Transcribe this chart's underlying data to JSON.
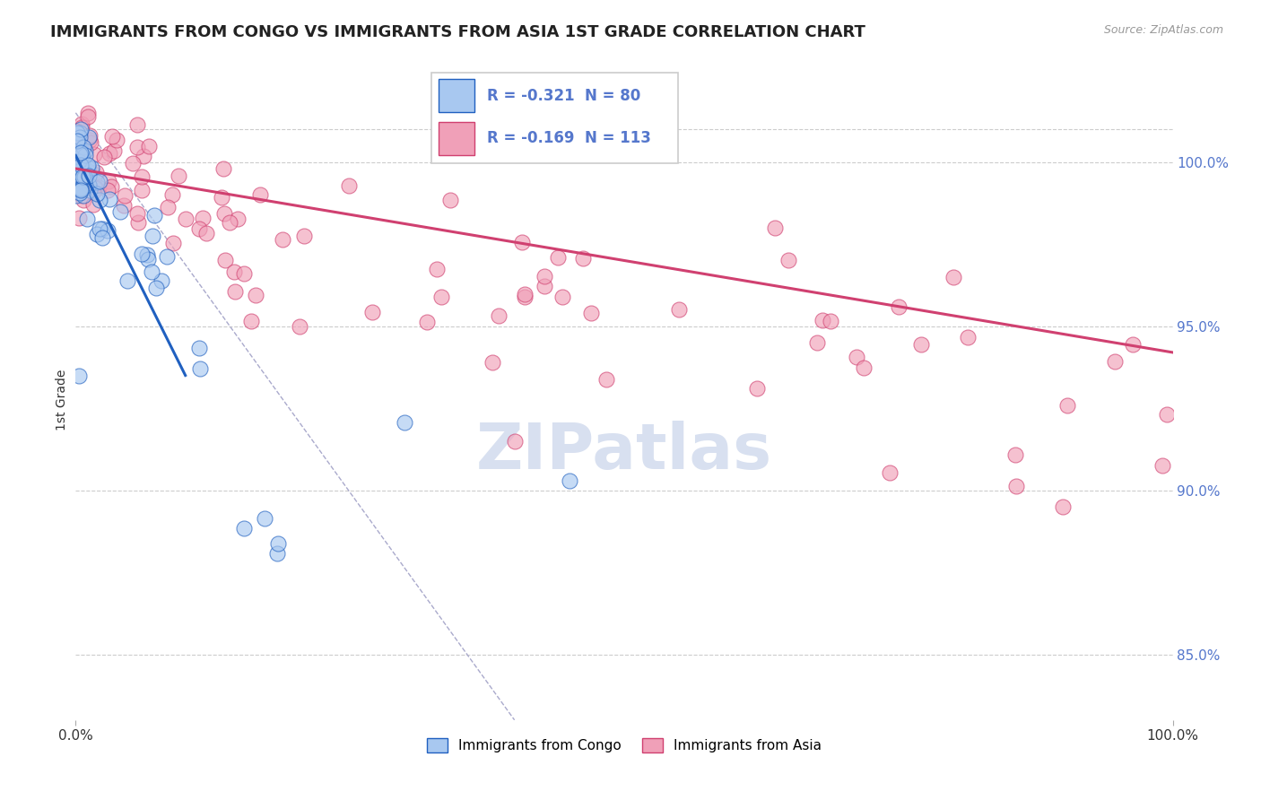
{
  "title": "IMMIGRANTS FROM CONGO VS IMMIGRANTS FROM ASIA 1ST GRADE CORRELATION CHART",
  "source": "Source: ZipAtlas.com",
  "ylabel": "1st Grade",
  "legend_congo": "Immigrants from Congo",
  "legend_asia": "Immigrants from Asia",
  "r_congo": -0.321,
  "n_congo": 80,
  "r_asia": -0.169,
  "n_asia": 113,
  "color_congo": "#a8c8f0",
  "color_asia": "#f0a0b8",
  "trendline_congo": "#2060c0",
  "trendline_asia": "#d04070",
  "ref_line_color": "#aaaacc",
  "grid_color": "#cccccc",
  "ytick_color": "#5577cc",
  "yticks": [
    85.0,
    90.0,
    95.0,
    100.0
  ],
  "ylim": [
    83.0,
    102.5
  ],
  "xlim": [
    0.0,
    100.0
  ],
  "watermark": "ZIPatlas",
  "watermark_color": "#d8e0f0",
  "congo_trend_x0": 0.0,
  "congo_trend_y0": 100.2,
  "congo_trend_x1": 10.0,
  "congo_trend_y1": 93.5,
  "asia_trend_x0": 0.0,
  "asia_trend_y0": 99.8,
  "asia_trend_x1": 100.0,
  "asia_trend_y1": 94.2,
  "ref_x0": 0.0,
  "ref_y0": 101.5,
  "ref_x1": 40.0,
  "ref_y1": 83.0
}
